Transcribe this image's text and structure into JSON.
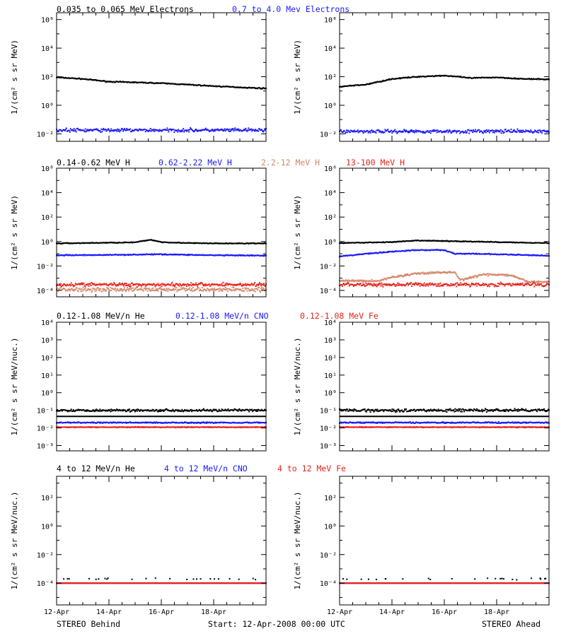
{
  "headers": [
    {
      "row": 0,
      "items": [
        {
          "text": "0.035 to 0.065 MeV Electrons",
          "color": "#000000"
        },
        {
          "text": "0.7 to 4.0 Mev Electrons",
          "color": "#1a1aff"
        }
      ]
    },
    {
      "row": 1,
      "items": [
        {
          "text": "0.14-0.62 MeV H",
          "color": "#000000"
        },
        {
          "text": "0.62-2.22 MeV H",
          "color": "#1a1aff"
        },
        {
          "text": "2.2-12 MeV H",
          "color": "#d4876a"
        },
        {
          "text": "13-100 MeV H",
          "color": "#e8231c"
        }
      ]
    },
    {
      "row": 2,
      "items": [
        {
          "text": "0.12-1.08 MeV/n He",
          "color": "#000000"
        },
        {
          "text": "0.12-1.08 MeV/n CNO",
          "color": "#1a1aff"
        },
        {
          "text": "0.12-1.08 MeV Fe",
          "color": "#e8231c"
        }
      ]
    },
    {
      "row": 3,
      "items": [
        {
          "text": "4 to 12 MeV/n He",
          "color": "#000000"
        },
        {
          "text": "4 to 12 MeV/n CNO",
          "color": "#1a1aff"
        },
        {
          "text": "4 to 12 MeV Fe",
          "color": "#e8231c"
        }
      ]
    }
  ],
  "footer": {
    "left": "STEREO Behind",
    "center": "Start: 12-Apr-2008 00:00 UTC",
    "right": "STEREO Ahead"
  },
  "x_tick_labels": [
    "12-Apr",
    "14-Apr",
    "16-Apr",
    "18-Apr"
  ],
  "chart_data": [
    {
      "id": "electrons-behind",
      "type": "scatter",
      "row": 0,
      "col": 0,
      "ylabel": "1/(cm² s sr MeV)",
      "yscale": "log",
      "ylim": [
        0.003,
        3000000
      ],
      "ytick_exponents": [
        -2,
        0,
        2,
        4,
        6
      ],
      "xlim": [
        12,
        20
      ],
      "series": [
        {
          "name": "0.035 to 0.065 MeV Electrons",
          "color": "#000000",
          "x": [
            12,
            13,
            14,
            15,
            16,
            17,
            18,
            19,
            20
          ],
          "y": [
            90,
            70,
            45,
            40,
            35,
            28,
            22,
            18,
            15
          ],
          "scatter": 0.05
        },
        {
          "name": "0.7 to 4.0 Mev Electrons",
          "color": "#1a1aff",
          "x": [
            12,
            20
          ],
          "y": [
            0.018,
            0.018
          ],
          "scatter": 0.18
        }
      ]
    },
    {
      "id": "electrons-ahead",
      "type": "scatter",
      "row": 0,
      "col": 1,
      "ylabel": "1/(cm² s sr MeV)",
      "yscale": "log",
      "ylim": [
        0.003,
        3000000
      ],
      "ytick_exponents": [
        -2,
        0,
        2,
        4,
        6
      ],
      "xlim": [
        12,
        20
      ],
      "series": [
        {
          "name": "0.035 to 0.065 MeV Electrons",
          "color": "#000000",
          "x": [
            12,
            13,
            14,
            15,
            16,
            16.5,
            17,
            18,
            19,
            20
          ],
          "y": [
            20,
            28,
            70,
            100,
            120,
            100,
            80,
            90,
            70,
            65
          ],
          "scatter": 0.05
        },
        {
          "name": "0.7 to 4.0 Mev Electrons",
          "color": "#1a1aff",
          "x": [
            12,
            20
          ],
          "y": [
            0.015,
            0.015
          ],
          "scatter": 0.18
        }
      ]
    },
    {
      "id": "protons-behind",
      "type": "scatter",
      "row": 1,
      "col": 0,
      "ylabel": "1/(cm² s sr MeV)",
      "yscale": "log",
      "ylim": [
        3e-05,
        1000000
      ],
      "ytick_exponents": [
        -4,
        -2,
        0,
        2,
        4,
        6
      ],
      "xlim": [
        12,
        20
      ],
      "series": [
        {
          "name": "0.14-0.62 MeV H",
          "color": "#000000",
          "x": [
            12,
            14,
            15,
            15.6,
            16,
            17,
            18,
            20
          ],
          "y": [
            0.7,
            0.8,
            0.85,
            1.4,
            0.9,
            0.75,
            0.7,
            0.7
          ],
          "scatter": 0.05
        },
        {
          "name": "0.62-2.22 MeV H",
          "color": "#1a1aff",
          "x": [
            12,
            14,
            16,
            18,
            20
          ],
          "y": [
            0.075,
            0.08,
            0.09,
            0.075,
            0.07
          ],
          "scatter": 0.06
        },
        {
          "name": "2.2-12 MeV H",
          "color": "#d4876a",
          "x": [
            12,
            20
          ],
          "y": [
            0.00012,
            0.00012
          ],
          "scatter": 0.25
        },
        {
          "name": "13-100 MeV H",
          "color": "#e8231c",
          "x": [
            12,
            20
          ],
          "y": [
            0.0003,
            0.0003
          ],
          "scatter": 0.22
        }
      ]
    },
    {
      "id": "protons-ahead",
      "type": "scatter",
      "row": 1,
      "col": 1,
      "ylabel": "1/(cm² s sr MeV)",
      "yscale": "log",
      "ylim": [
        3e-05,
        1000000
      ],
      "ytick_exponents": [
        -4,
        -2,
        0,
        2,
        4,
        6
      ],
      "xlim": [
        12,
        20
      ],
      "series": [
        {
          "name": "0.14-0.62 MeV H",
          "color": "#000000",
          "x": [
            12,
            14,
            15,
            16,
            17,
            18,
            20
          ],
          "y": [
            0.75,
            0.9,
            1.2,
            1.1,
            1.0,
            0.9,
            0.75
          ],
          "scatter": 0.05
        },
        {
          "name": "0.62-2.22 MeV H",
          "color": "#1a1aff",
          "x": [
            12,
            13,
            14,
            15,
            16,
            16.4,
            17,
            18,
            20
          ],
          "y": [
            0.06,
            0.1,
            0.15,
            0.2,
            0.2,
            0.1,
            0.1,
            0.09,
            0.07
          ],
          "scatter": 0.06
        },
        {
          "name": "2.2-12 MeV H",
          "color": "#d4876a",
          "x": [
            13.5,
            14,
            15,
            16,
            16.4,
            16.6,
            17.5,
            18.5,
            19.2
          ],
          "y": [
            0.0006,
            0.0012,
            0.0025,
            0.003,
            0.003,
            0.0007,
            0.002,
            0.0018,
            0.0005
          ],
          "scatter": 0.12
        },
        {
          "name": "13-100 MeV H",
          "color": "#e8231c",
          "x": [
            12,
            20
          ],
          "y": [
            0.0003,
            0.0003
          ],
          "scatter": 0.22
        }
      ]
    },
    {
      "id": "heavy-ions-low-behind",
      "type": "scatter",
      "row": 2,
      "col": 0,
      "ylabel": "1/(cm² s sr MeV/nuc.)",
      "yscale": "log",
      "ylim": [
        0.0005,
        10000
      ],
      "ytick_labels": [
        "10⁻³",
        "10⁻²",
        "10⁻¹",
        "10⁰",
        "10¹",
        "10²",
        "10³",
        "10⁴"
      ],
      "ytick_exponents": [
        -3,
        -2,
        -1,
        0,
        1,
        2,
        3,
        4
      ],
      "xlim": [
        12,
        20
      ],
      "series": [
        {
          "name": "0.12-1.08 MeV/n He",
          "color": "#000000",
          "x": [
            12,
            20
          ],
          "y": [
            0.1,
            0.1
          ],
          "scatter": 0.1,
          "baseline": 0.045
        },
        {
          "name": "0.12-1.08 MeV/n CNO",
          "color": "#1a1aff",
          "x": [
            12,
            20
          ],
          "y": [
            0.02,
            0.02
          ],
          "scatter": 0.05,
          "baseline": 0.011
        },
        {
          "name": "0.12-1.08 MeV Fe",
          "color": "#e8231c",
          "x": [
            12,
            20
          ],
          "y": [
            0.011,
            0.011
          ],
          "scatter": 0.03
        }
      ]
    },
    {
      "id": "heavy-ions-low-ahead",
      "type": "scatter",
      "row": 2,
      "col": 1,
      "ylabel": "1/(cm² s sr MeV/nuc.)",
      "yscale": "log",
      "ylim": [
        0.0005,
        10000
      ],
      "ytick_labels": [
        "10⁻³",
        "10⁻²",
        "10⁻¹",
        "10⁰",
        "10¹",
        "10²",
        "10³",
        "10⁴"
      ],
      "ytick_exponents": [
        -3,
        -2,
        -1,
        0,
        1,
        2,
        3,
        4
      ],
      "xlim": [
        12,
        20
      ],
      "series": [
        {
          "name": "0.12-1.08 MeV/n He",
          "color": "#000000",
          "x": [
            12,
            20
          ],
          "y": [
            0.1,
            0.1
          ],
          "scatter": 0.12,
          "baseline": 0.045
        },
        {
          "name": "0.12-1.08 MeV/n CNO",
          "color": "#1a1aff",
          "x": [
            12,
            20
          ],
          "y": [
            0.02,
            0.02
          ],
          "scatter": 0.05,
          "baseline": 0.011
        },
        {
          "name": "0.12-1.08 MeV Fe",
          "color": "#e8231c",
          "x": [
            12,
            20
          ],
          "y": [
            0.011,
            0.011
          ],
          "scatter": 0.03
        }
      ]
    },
    {
      "id": "heavy-ions-high-behind",
      "type": "scatter",
      "row": 3,
      "col": 0,
      "ylabel": "1/(cm² s sr MeV/nuc.)",
      "yscale": "log",
      "ylim": [
        3e-06,
        3000
      ],
      "ytick_exponents": [
        -4,
        -2,
        0,
        2
      ],
      "xlim": [
        12,
        20
      ],
      "series": [
        {
          "name": "4 to 12 MeV/n He",
          "color": "#000000",
          "x": [
            12,
            20
          ],
          "y": [
            0.0002,
            0.0002
          ],
          "scatter": 0.1,
          "sparse": true
        },
        {
          "name": "4 to 12 MeV/n CNO",
          "color": "#1a1aff",
          "x": [
            12,
            20
          ],
          "y": [
            0.0001,
            0.0001
          ],
          "scatter": 0.0
        },
        {
          "name": "4 to 12 MeV Fe",
          "color": "#e8231c",
          "x": [
            12,
            20
          ],
          "y": [
            0.0001,
            0.0001
          ],
          "scatter": 0.0
        }
      ]
    },
    {
      "id": "heavy-ions-high-ahead",
      "type": "scatter",
      "row": 3,
      "col": 1,
      "ylabel": "1/(cm² s sr MeV/nuc.)",
      "yscale": "log",
      "ylim": [
        3e-06,
        3000
      ],
      "ytick_exponents": [
        -4,
        -2,
        0,
        2
      ],
      "xlim": [
        12,
        20
      ],
      "series": [
        {
          "name": "4 to 12 MeV/n He",
          "color": "#000000",
          "x": [
            12,
            20
          ],
          "y": [
            0.0002,
            0.0002
          ],
          "scatter": 0.1,
          "sparse": true
        },
        {
          "name": "4 to 12 MeV/n CNO",
          "color": "#1a1aff",
          "x": [
            12,
            20
          ],
          "y": [
            0.0001,
            0.0001
          ],
          "scatter": 0.0
        },
        {
          "name": "4 to 12 MeV Fe",
          "color": "#e8231c",
          "x": [
            12,
            20
          ],
          "y": [
            0.0001,
            0.0001
          ],
          "scatter": 0.0
        }
      ]
    }
  ]
}
